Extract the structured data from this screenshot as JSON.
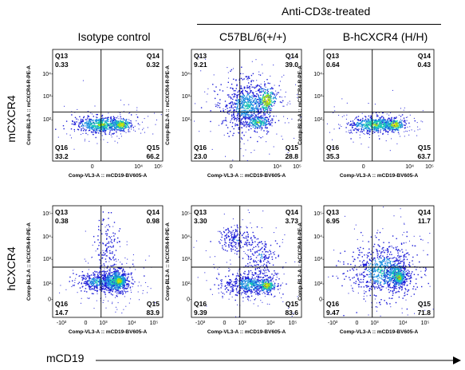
{
  "header": {
    "treatment_label": "Anti-CD3ε-treated",
    "columns": [
      "Isotype control",
      "C57BL/6(+/+)",
      "B-hCXCR4 (H/H)"
    ],
    "rows": [
      "mCXCR4",
      "hCXCR4"
    ]
  },
  "footer": {
    "x_label": "mCD19"
  },
  "axes": {
    "x_title": "Comp-VL3-A :: mCD19-BV605-A",
    "y_titles": [
      "Comp-BL2-A :: mCXCR4-R-PE-A",
      "Comp-BL2-A :: hCXCR4-R-PE-A"
    ]
  },
  "quadrant_names": [
    "Q13",
    "Q14",
    "Q16",
    "Q15"
  ],
  "ticks": {
    "y_top": [
      "10⁴",
      "10³",
      "10²"
    ],
    "x_top": [
      "0",
      "10⁴",
      "10⁵"
    ],
    "y_bottom": [
      "10⁵",
      "10⁴",
      "10³",
      "10²",
      "0"
    ],
    "x_bottom": [
      "-10³",
      "0",
      "10³",
      "10⁴",
      "10⁵"
    ]
  },
  "panels": [
    {
      "row": 0,
      "col": 0,
      "q13": "0.33",
      "q14": "0.32",
      "q16": "33.2",
      "q15": "66.2"
    },
    {
      "row": 0,
      "col": 1,
      "q13": "9.21",
      "q14": "39.0",
      "q16": "23.0",
      "q15": "28.8"
    },
    {
      "row": 0,
      "col": 2,
      "q13": "0.64",
      "q14": "0.43",
      "q16": "35.3",
      "q15": "63.7"
    },
    {
      "row": 1,
      "col": 0,
      "q13": "0.38",
      "q14": "0.98",
      "q16": "14.7",
      "q15": "83.9"
    },
    {
      "row": 1,
      "col": 1,
      "q13": "3.30",
      "q14": "3.73",
      "q16": "9.39",
      "q15": "83.6"
    },
    {
      "row": 1,
      "col": 2,
      "q13": "6.95",
      "q14": "11.7",
      "q16": "9.47",
      "q15": "71.8"
    }
  ]
}
